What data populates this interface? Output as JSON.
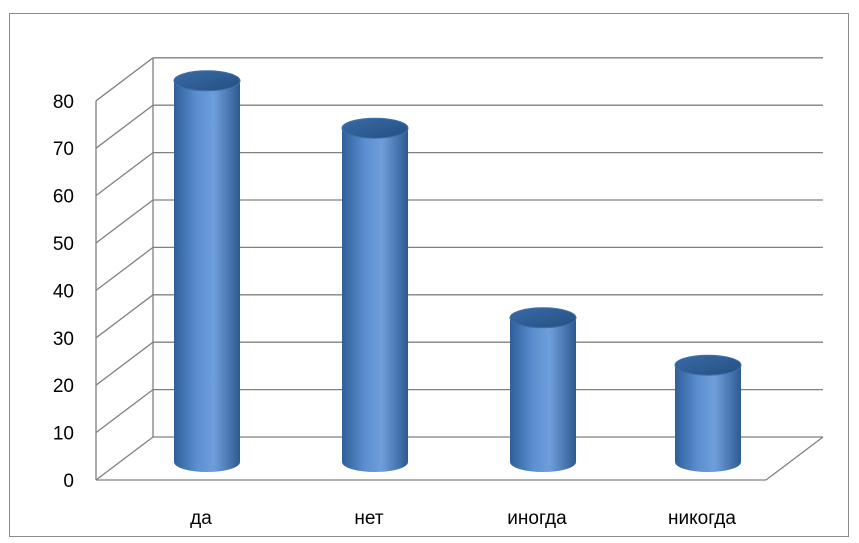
{
  "chart_data": {
    "type": "bar",
    "style": "3d-cylinder",
    "categories": [
      "да",
      "нет",
      "иногда",
      "никогда"
    ],
    "series": [
      {
        "values": [
          80,
          70,
          30,
          20
        ]
      }
    ],
    "title": "",
    "xlabel": "",
    "ylabel": "",
    "ylim": [
      0,
      80
    ],
    "yticks": [
      "0",
      "10",
      "20",
      "30",
      "40",
      "50",
      "60",
      "70",
      "80"
    ],
    "grid": true,
    "legend": "none",
    "colors": {
      "bar": "#4a7ebb",
      "bar_dark": "#2a5a94",
      "bar_light": "#7aa6dc",
      "grid": "#808080"
    }
  }
}
